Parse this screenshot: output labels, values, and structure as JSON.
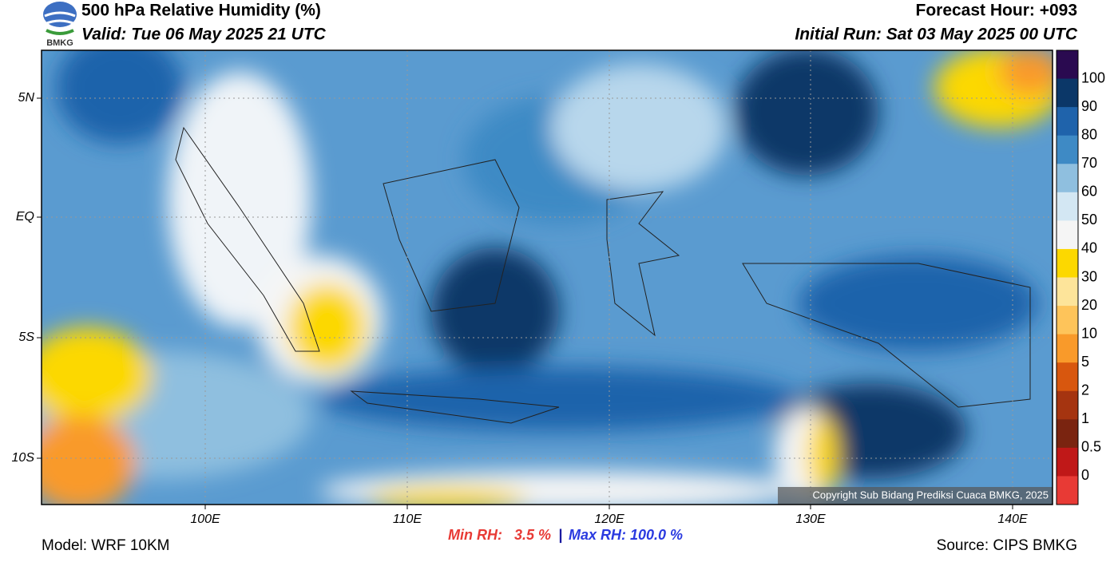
{
  "header": {
    "title": "500 hPa Relative Humidity (%)",
    "valid": "Valid: Tue 06 May 2025 21 UTC",
    "forecast_hour": "Forecast Hour: +093",
    "initial_run": "Initial Run: Sat 03 May 2025 00 UTC",
    "logo": "BMKG"
  },
  "map": {
    "lat_labels": [
      "5N",
      "EQ",
      "5S",
      "10S"
    ],
    "lon_labels": [
      "100E",
      "110E",
      "120E",
      "130E",
      "140E"
    ],
    "copyright": "Copyright Sub Bidang Prediksi Cuaca BMKG, 2025"
  },
  "colorbar": {
    "labels": [
      "100",
      "90",
      "80",
      "70",
      "60",
      "50",
      "40",
      "30",
      "20",
      "10",
      "5",
      "2",
      "1",
      "0.5",
      "0"
    ],
    "colors": [
      "#2a0a50",
      "#0b3768",
      "#1f63ab",
      "#3e8ac5",
      "#8fbfdf",
      "#d3e7f3",
      "#f5f5f5",
      "#fcd800",
      "#fde49a",
      "#fec45a",
      "#f99a2a",
      "#d8570e",
      "#a53410",
      "#7a2410",
      "#c01818",
      "#e83a35"
    ]
  },
  "footer": {
    "model": "Model: WRF 10KM",
    "min_rh": "Min RH:   3.5 %",
    "separator": "|",
    "max_rh": "Max RH: 100.0 %",
    "source": "Source: CIPS BMKG"
  }
}
